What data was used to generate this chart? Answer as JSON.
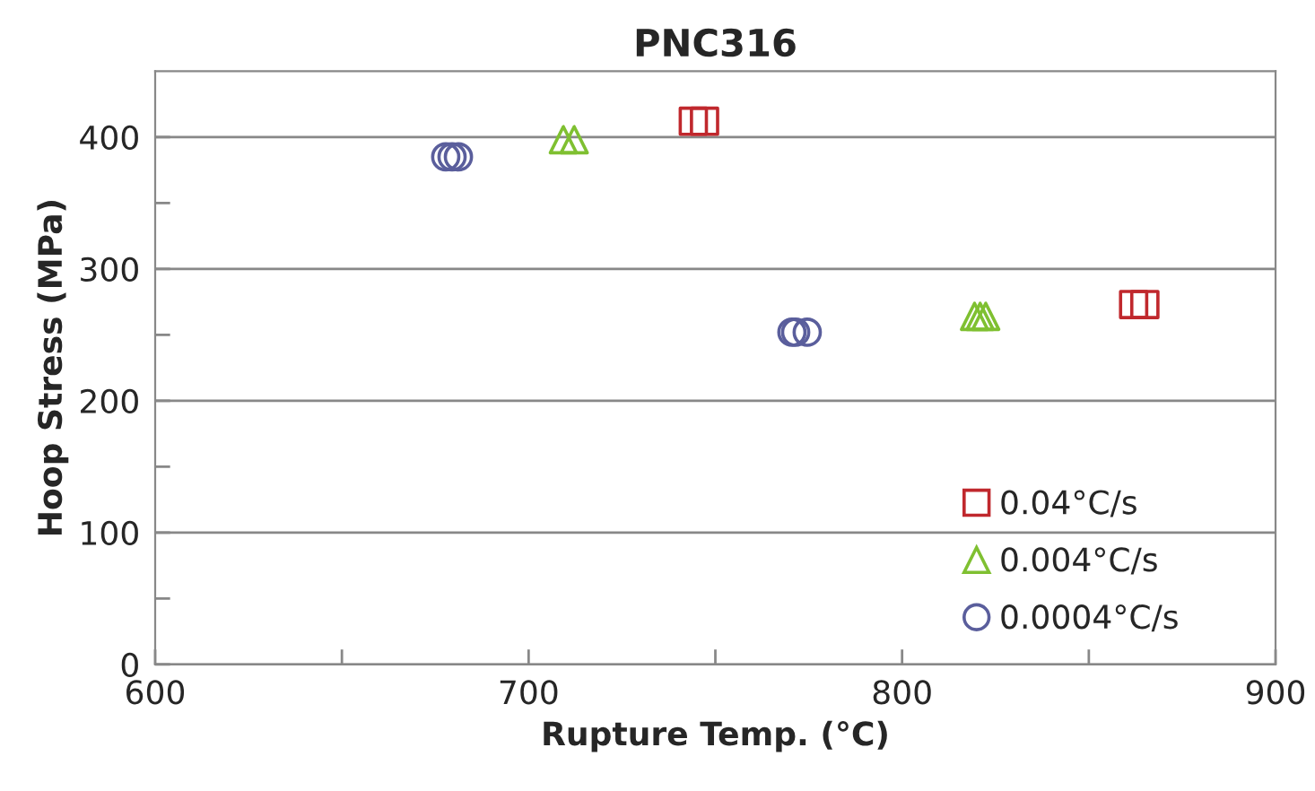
{
  "chart_data": {
    "type": "scatter",
    "title": "PNC316",
    "xlabel": "Rupture Temp. (°C)",
    "ylabel": "Hoop Stress (MPa)",
    "xlim": [
      600,
      900
    ],
    "ylim": [
      0,
      450
    ],
    "xticks": [
      600,
      {
        "value": 650,
        "label": null
      },
      700,
      {
        "value": 750,
        "label": null
      },
      800,
      {
        "value": 850,
        "label": null
      },
      900
    ],
    "yticks": [
      0,
      {
        "value": 50,
        "label": null
      },
      100,
      {
        "value": 150,
        "label": null
      },
      200,
      {
        "value": 250,
        "label": null
      },
      300,
      {
        "value": 350,
        "label": null
      },
      400
    ],
    "grid": "y",
    "legend": "bottom right",
    "series": [
      {
        "name": "0.04°C/s",
        "color": "#c0282d",
        "marker": "square",
        "x": [
          744.1,
          747.1,
          862,
          865
        ],
        "values": [
          412,
          412,
          273,
          273
        ]
      },
      {
        "name": "0.004°C/s",
        "color": "#7fc031",
        "marker": "triangle",
        "x": [
          709.3,
          712.2,
          819.4,
          820.9,
          822.4
        ],
        "values": [
          398,
          398,
          264,
          264,
          264
        ]
      },
      {
        "name": "0.0004°C/s",
        "color": "#5a5e9c",
        "marker": "circle",
        "x": [
          677.8,
          679.5,
          681.2,
          770.5,
          771.5,
          774.6
        ],
        "values": [
          385,
          385,
          385,
          252,
          252,
          252
        ]
      }
    ]
  }
}
